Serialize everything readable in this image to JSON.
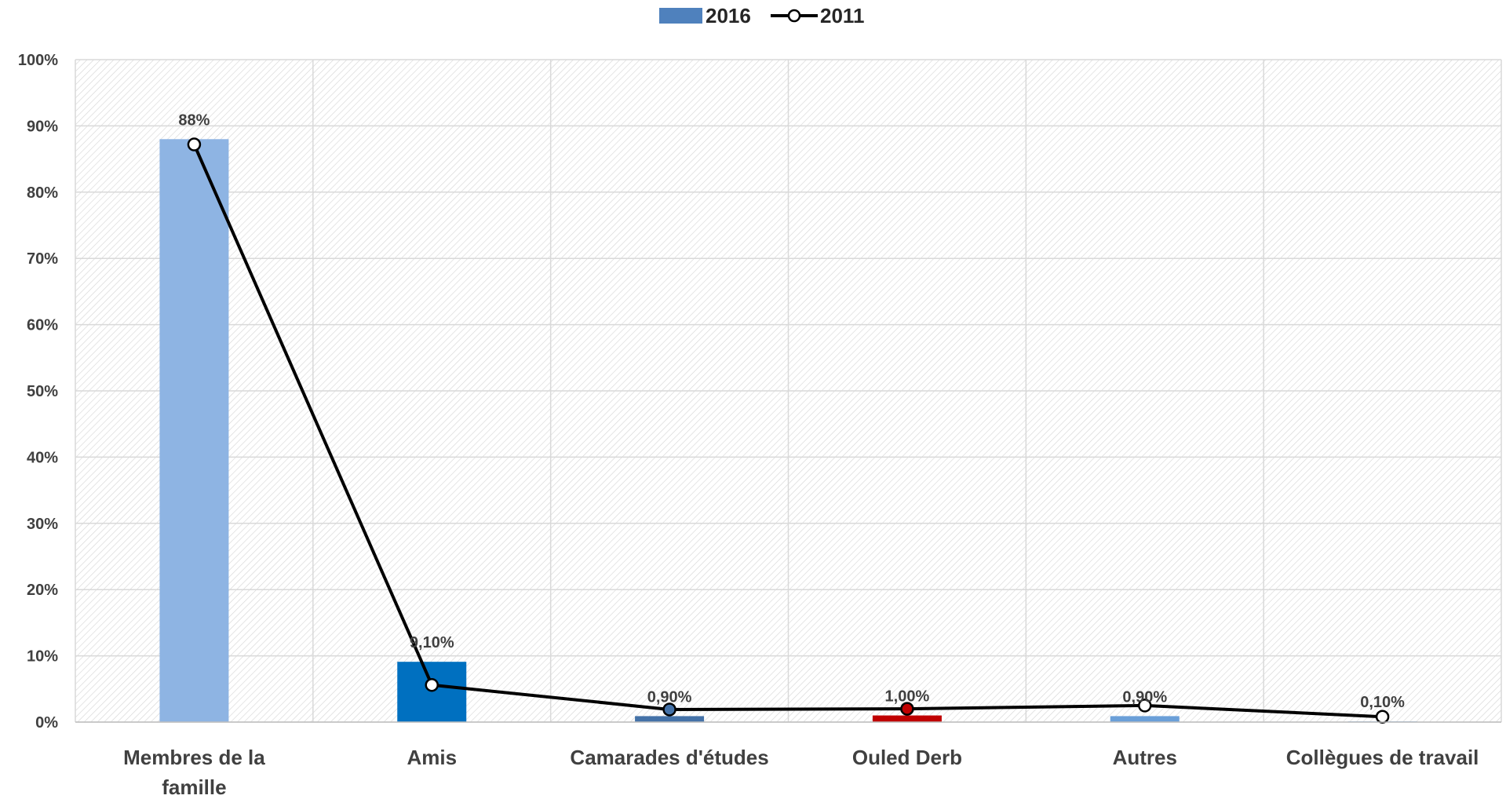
{
  "chart_data": {
    "type": "bar",
    "categories": [
      "Membres de la famille",
      "Amis",
      "Camarades d'études",
      "Ouled Derb",
      "Autres",
      "Collègues de travail"
    ],
    "category_label_lines": [
      [
        "Membres de la",
        "famille"
      ],
      [
        "Amis"
      ],
      [
        "Camarades d'études"
      ],
      [
        "Ouled Derb"
      ],
      [
        "Autres"
      ],
      [
        "Collègues de travail"
      ]
    ],
    "series": [
      {
        "name": "2016",
        "kind": "bar",
        "values": [
          88,
          9.1,
          0.9,
          1.0,
          0.9,
          0.1
        ],
        "colors": [
          "#8EB4E3",
          "#0070C0",
          "#4472A8",
          "#C00000",
          "#6A9FD8",
          "#6A9FD8"
        ],
        "legend_color": "#4F81BD",
        "labels": [
          "88%",
          "9,10%",
          "0,90%",
          "1,00%",
          "0,90%",
          "0,10%"
        ]
      },
      {
        "name": "2011",
        "kind": "line",
        "values": [
          87.2,
          5.6,
          1.9,
          2.0,
          2.5,
          0.8
        ],
        "line_color": "#000000",
        "marker_fills": [
          "#ffffff",
          "#ffffff",
          "#4472A8",
          "#C00000",
          "#ffffff",
          "#ffffff"
        ]
      }
    ],
    "ylim": [
      0,
      100
    ],
    "yticks": [
      0,
      10,
      20,
      30,
      40,
      50,
      60,
      70,
      80,
      90,
      100
    ],
    "ytick_labels": [
      "0%",
      "10%",
      "20%",
      "30%",
      "40%",
      "50%",
      "60%",
      "70%",
      "80%",
      "90%",
      "100%"
    ],
    "grid": true,
    "legend_position": "top-center",
    "title": "",
    "xlabel": "",
    "ylabel": ""
  }
}
